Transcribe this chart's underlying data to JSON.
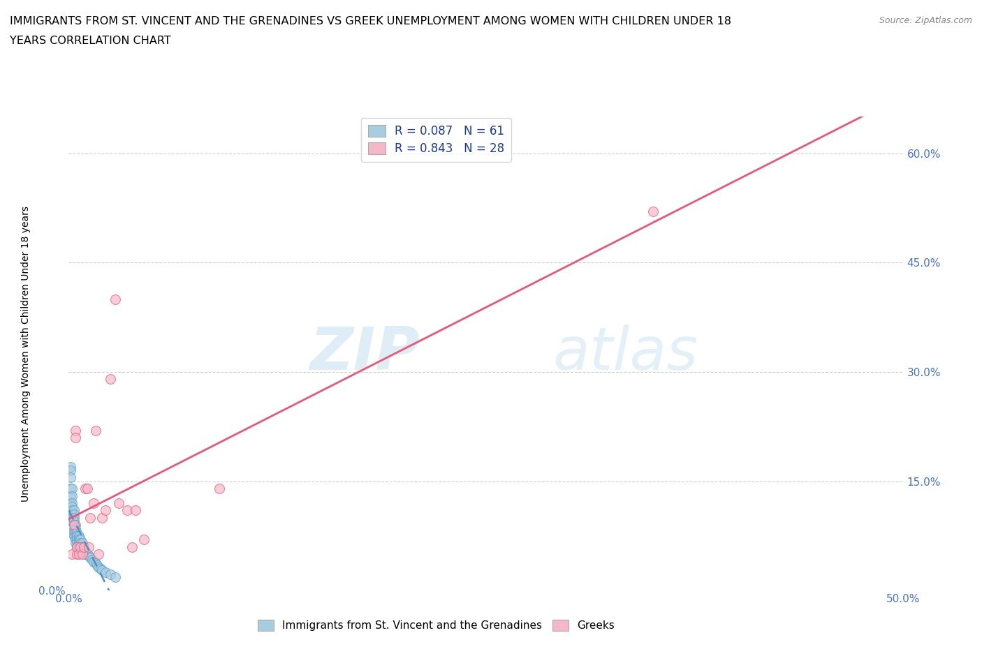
{
  "title_line1": "IMMIGRANTS FROM ST. VINCENT AND THE GRENADINES VS GREEK UNEMPLOYMENT AMONG WOMEN WITH CHILDREN UNDER 18",
  "title_line2": "YEARS CORRELATION CHART",
  "source": "Source: ZipAtlas.com",
  "ylabel": "Unemployment Among Women with Children Under 18 years",
  "xlim": [
    0.0,
    0.5
  ],
  "ylim": [
    0.0,
    0.65
  ],
  "xticks": [
    0.0,
    0.1,
    0.2,
    0.3,
    0.4,
    0.5
  ],
  "xtick_labels": [
    "0.0%",
    "",
    "",
    "",
    "",
    "50.0%"
  ],
  "ytick_positions": [
    0.0,
    0.15,
    0.3,
    0.45,
    0.6
  ],
  "ytick_labels_right": [
    "",
    "15.0%",
    "30.0%",
    "45.0%",
    "60.0%"
  ],
  "ytick_labels_left": [
    "0.0%",
    "",
    "",
    "",
    ""
  ],
  "blue_color": "#a8cce0",
  "blue_edge_color": "#5b9ec9",
  "pink_color": "#f4b8c8",
  "pink_edge_color": "#e8567a",
  "blue_line_color": "#4a90c4",
  "pink_line_color": "#e8567a",
  "R_blue": 0.087,
  "N_blue": 61,
  "R_pink": 0.843,
  "N_pink": 28,
  "legend_label_blue": "Immigrants from St. Vincent and the Grenadines",
  "legend_label_pink": "Greeks",
  "watermark_zip": "ZIP",
  "watermark_atlas": "atlas",
  "blue_scatter_x": [
    0.001,
    0.001,
    0.001,
    0.001,
    0.001,
    0.001,
    0.002,
    0.002,
    0.002,
    0.002,
    0.002,
    0.002,
    0.002,
    0.002,
    0.003,
    0.003,
    0.003,
    0.003,
    0.003,
    0.003,
    0.003,
    0.003,
    0.004,
    0.004,
    0.004,
    0.004,
    0.004,
    0.004,
    0.005,
    0.005,
    0.005,
    0.005,
    0.005,
    0.006,
    0.006,
    0.006,
    0.006,
    0.007,
    0.007,
    0.007,
    0.007,
    0.008,
    0.008,
    0.008,
    0.009,
    0.009,
    0.01,
    0.01,
    0.011,
    0.012,
    0.013,
    0.014,
    0.015,
    0.016,
    0.017,
    0.018,
    0.019,
    0.02,
    0.022,
    0.025,
    0.028
  ],
  "blue_scatter_y": [
    0.17,
    0.165,
    0.155,
    0.14,
    0.13,
    0.12,
    0.14,
    0.13,
    0.12,
    0.115,
    0.11,
    0.105,
    0.1,
    0.095,
    0.11,
    0.105,
    0.1,
    0.095,
    0.09,
    0.085,
    0.08,
    0.075,
    0.09,
    0.085,
    0.08,
    0.075,
    0.07,
    0.065,
    0.08,
    0.075,
    0.07,
    0.065,
    0.06,
    0.075,
    0.07,
    0.065,
    0.06,
    0.07,
    0.065,
    0.06,
    0.055,
    0.065,
    0.06,
    0.055,
    0.06,
    0.055,
    0.055,
    0.05,
    0.05,
    0.048,
    0.045,
    0.042,
    0.04,
    0.038,
    0.035,
    0.032,
    0.03,
    0.028,
    0.025,
    0.022,
    0.018
  ],
  "pink_scatter_x": [
    0.002,
    0.003,
    0.004,
    0.004,
    0.005,
    0.005,
    0.006,
    0.007,
    0.008,
    0.009,
    0.01,
    0.011,
    0.012,
    0.013,
    0.015,
    0.016,
    0.018,
    0.02,
    0.022,
    0.025,
    0.028,
    0.03,
    0.035,
    0.038,
    0.04,
    0.045,
    0.09,
    0.35
  ],
  "pink_scatter_y": [
    0.05,
    0.09,
    0.22,
    0.21,
    0.05,
    0.06,
    0.05,
    0.06,
    0.05,
    0.06,
    0.14,
    0.14,
    0.06,
    0.1,
    0.12,
    0.22,
    0.05,
    0.1,
    0.11,
    0.29,
    0.4,
    0.12,
    0.11,
    0.06,
    0.11,
    0.07,
    0.14,
    0.52
  ]
}
